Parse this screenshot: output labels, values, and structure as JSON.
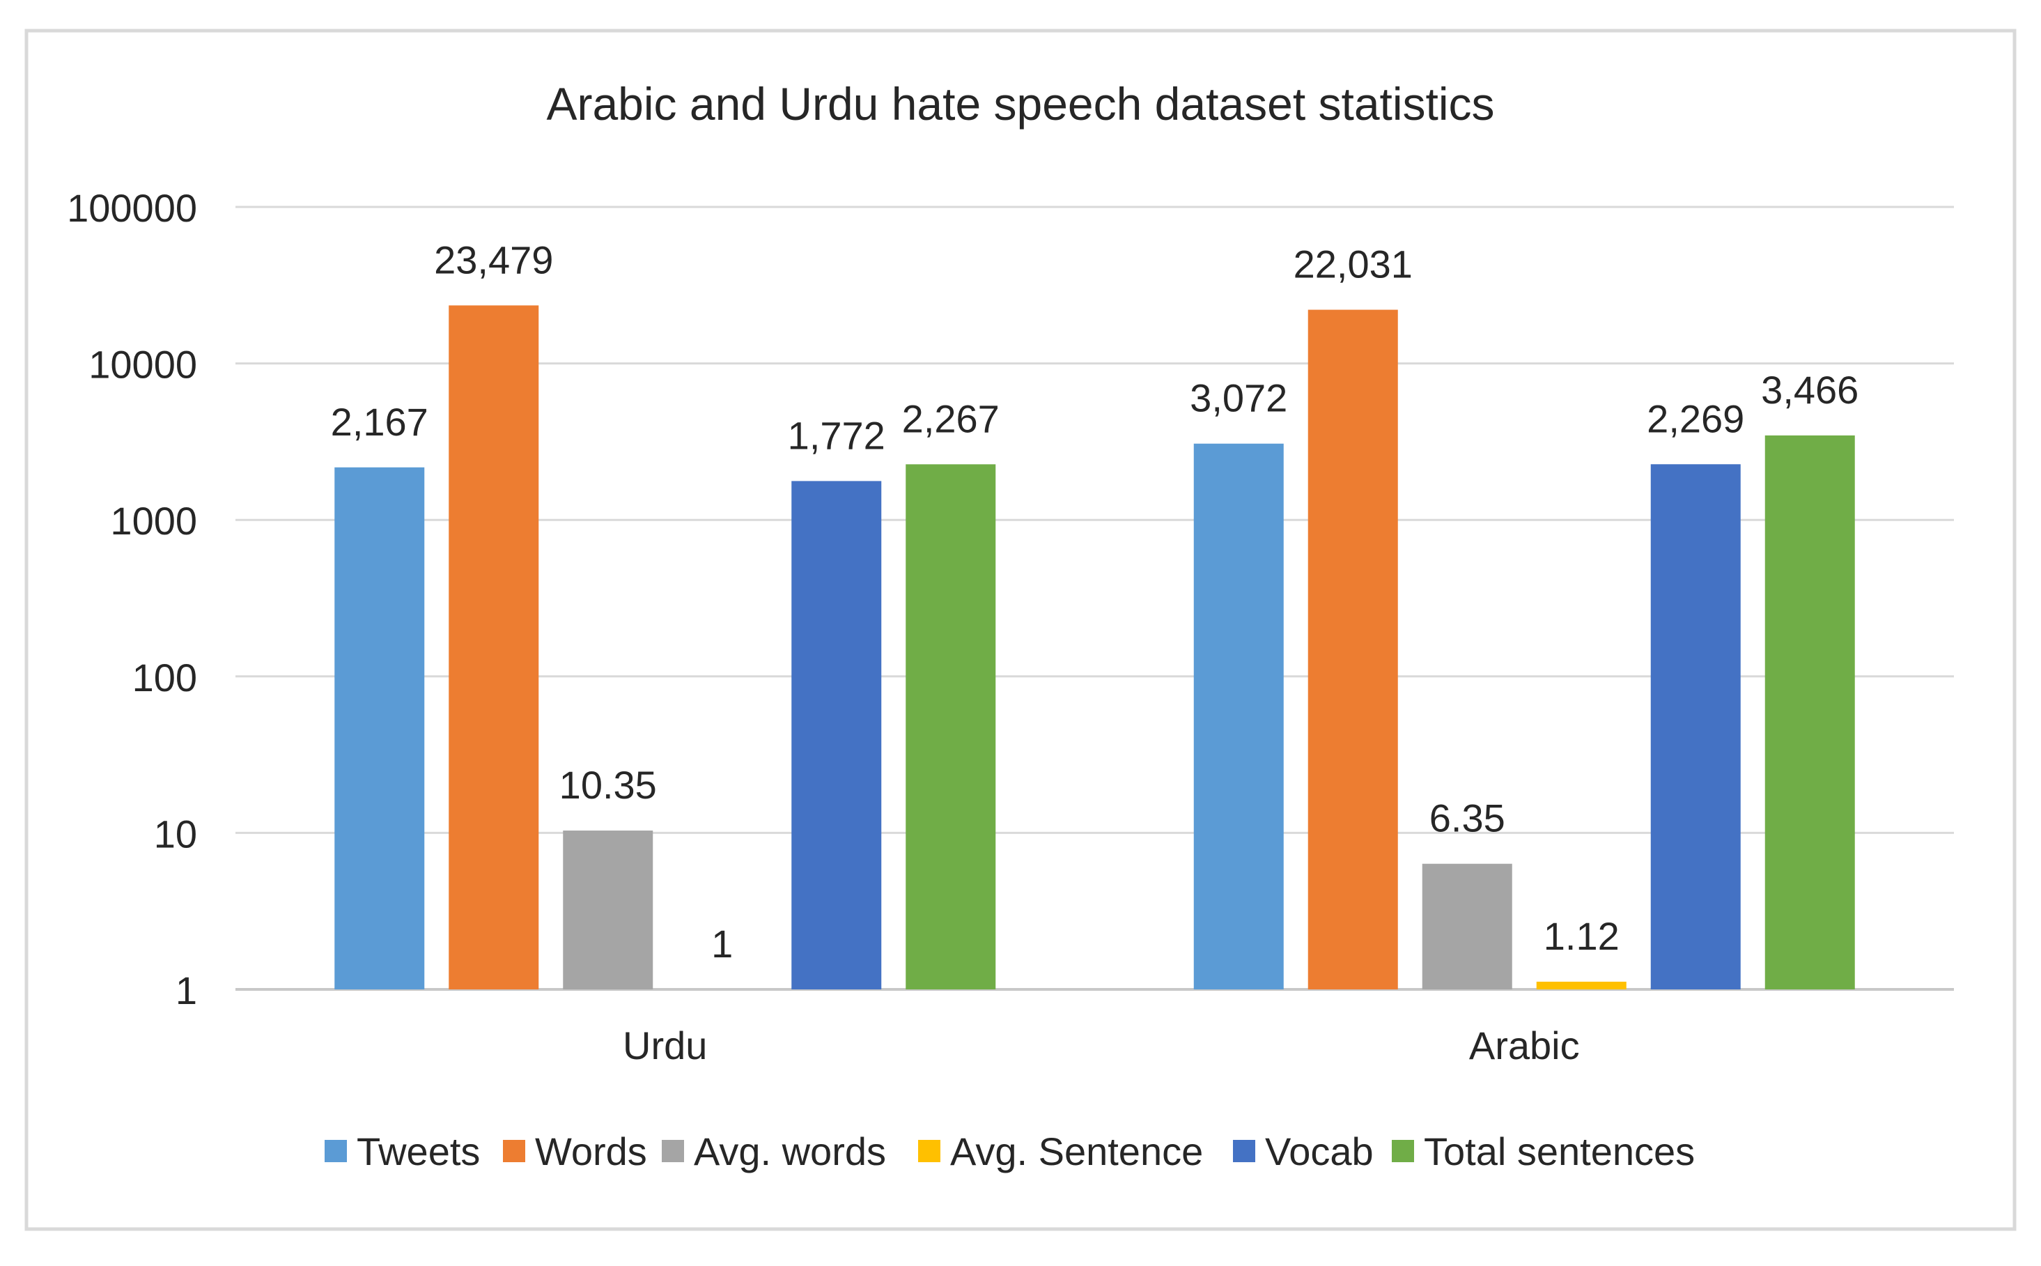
{
  "chart_data": {
    "type": "bar",
    "title": "Arabic and Urdu hate speech dataset statistics",
    "xlabel": "",
    "ylabel": "",
    "y_scale": "log",
    "ylim": [
      1,
      100000
    ],
    "y_ticks": [
      1,
      10,
      100,
      1000,
      10000,
      100000
    ],
    "y_tick_labels": [
      "1",
      "10",
      "100",
      "1000",
      "10000",
      "100000"
    ],
    "grid": true,
    "legend_position": "bottom",
    "categories": [
      "Urdu",
      "Arabic"
    ],
    "series": [
      {
        "name": "Tweets",
        "color": "#5B9BD5",
        "values": [
          2167,
          3072
        ],
        "labels": [
          "2,167",
          "3,072"
        ]
      },
      {
        "name": "Words",
        "color": "#ED7D31",
        "values": [
          23479,
          22031
        ],
        "labels": [
          "23,479",
          "22,031"
        ]
      },
      {
        "name": "Avg. words",
        "color": "#A5A5A5",
        "values": [
          10.35,
          6.35
        ],
        "labels": [
          "10.35",
          "6.35"
        ]
      },
      {
        "name": "Avg. Sentence",
        "color": "#FFC000",
        "values": [
          1,
          1.12
        ],
        "labels": [
          "1",
          "1.12"
        ]
      },
      {
        "name": "Vocab",
        "color": "#4472C4",
        "values": [
          1772,
          2269
        ],
        "labels": [
          "1,772",
          "2,269"
        ]
      },
      {
        "name": "Total sentences",
        "color": "#70AD47",
        "values": [
          2267,
          3466
        ],
        "labels": [
          "2,267",
          "3,466"
        ]
      }
    ]
  }
}
